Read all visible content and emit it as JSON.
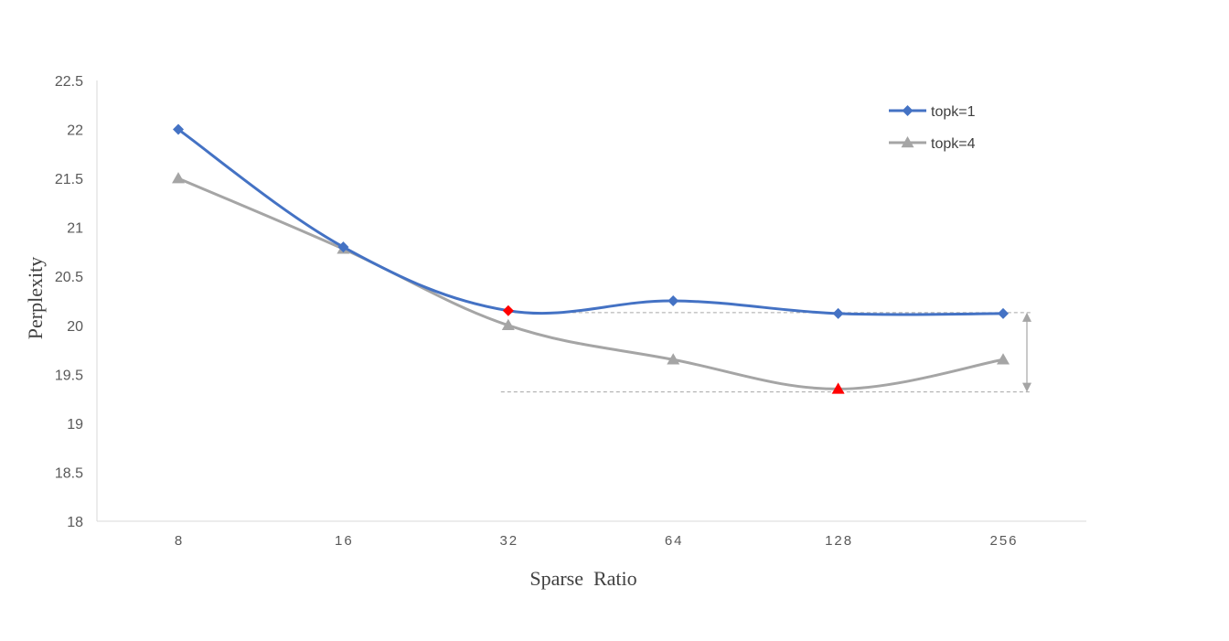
{
  "chart_data": {
    "type": "line",
    "title": "",
    "xlabel": "Sparse  Ratio",
    "ylabel": "Perplexity",
    "categories": [
      "8",
      "16",
      "32",
      "64",
      "128",
      "256"
    ],
    "ylim": [
      18,
      22.5
    ],
    "yticks": [
      "18",
      "18.5",
      "19",
      "19.5",
      "20",
      "20.5",
      "21",
      "21.5",
      "22",
      "22.5"
    ],
    "grid": false,
    "legend_position": "top-right",
    "series": [
      {
        "name": "topk=1",
        "values": [
          22.0,
          20.8,
          20.15,
          20.25,
          20.12,
          20.12
        ],
        "color": "#4472C4",
        "marker": "diamond",
        "highlight_index": 2,
        "highlight_color": "#FF0000"
      },
      {
        "name": "topk=4",
        "values": [
          21.5,
          20.78,
          20.0,
          19.65,
          19.35,
          19.65
        ],
        "color": "#A5A5A5",
        "marker": "triangle",
        "highlight_index": 4,
        "highlight_color": "#FF0000"
      }
    ],
    "annotations": [
      {
        "type": "reference-line",
        "value": 20.13,
        "from_category": "32",
        "to_category": "256"
      },
      {
        "type": "reference-line",
        "value": 19.32,
        "from_category": "32",
        "to_category": "256"
      },
      {
        "type": "double-arrow",
        "from_value": 20.13,
        "to_value": 19.32
      }
    ]
  }
}
